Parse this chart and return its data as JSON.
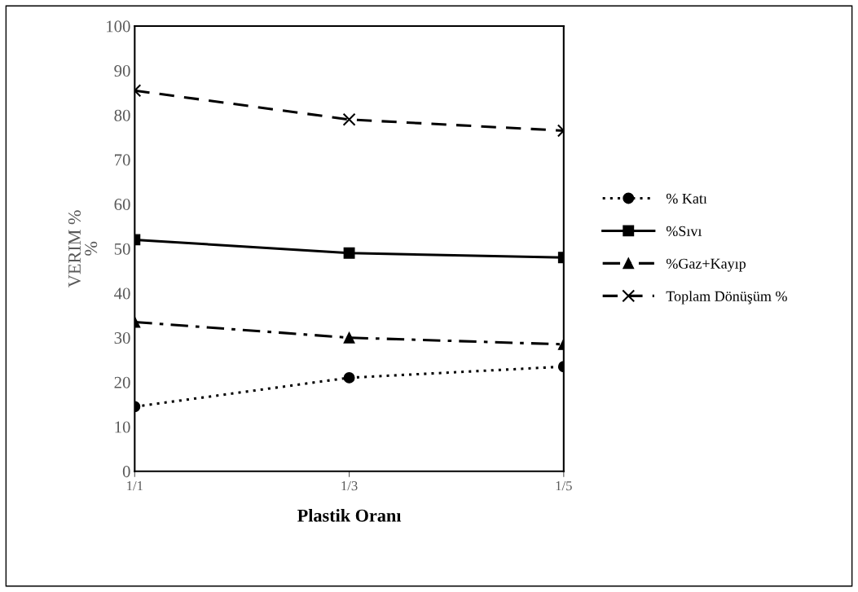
{
  "chart_data": {
    "type": "line",
    "xlabel": "Plastik Oranı",
    "ylabel": "VERIM %\n%",
    "categories": [
      "1/1",
      "1/3",
      "1/5"
    ],
    "series": [
      {
        "name": "% Katı",
        "color": "#000000",
        "values": [
          14.5,
          21,
          23.5
        ],
        "marker": "circle",
        "line_style": "dotted"
      },
      {
        "name": "%Sıvı",
        "color": "#000000",
        "values": [
          52,
          49,
          48
        ],
        "marker": "square",
        "line_style": "solid"
      },
      {
        "name": "%Gaz+Kayıp",
        "color": "#000000",
        "values": [
          33.5,
          30,
          28.5
        ],
        "marker": "triangle",
        "line_style": "dashdot"
      },
      {
        "name": "Toplam Dönüşüm %",
        "color": "#000000",
        "values": [
          85.5,
          79,
          76.5
        ],
        "marker": "cross",
        "line_style": "dashed"
      }
    ],
    "ylim": [
      0,
      100
    ],
    "yticks": [
      0,
      10,
      20,
      30,
      40,
      50,
      60,
      70,
      80,
      90,
      100
    ],
    "grid": false,
    "legend": "right"
  }
}
